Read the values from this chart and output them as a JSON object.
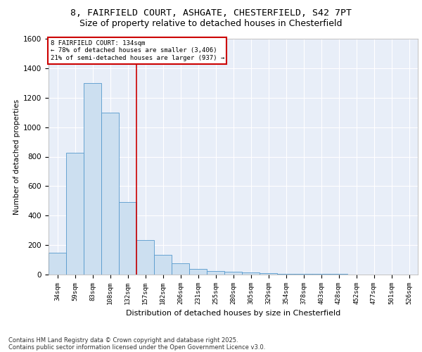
{
  "title1": "8, FAIRFIELD COURT, ASHGATE, CHESTERFIELD, S42 7PT",
  "title2": "Size of property relative to detached houses in Chesterfield",
  "xlabel": "Distribution of detached houses by size in Chesterfield",
  "ylabel": "Number of detached properties",
  "categories": [
    "34sqm",
    "59sqm",
    "83sqm",
    "108sqm",
    "132sqm",
    "157sqm",
    "182sqm",
    "206sqm",
    "231sqm",
    "255sqm",
    "280sqm",
    "305sqm",
    "329sqm",
    "354sqm",
    "378sqm",
    "403sqm",
    "428sqm",
    "452sqm",
    "477sqm",
    "501sqm",
    "526sqm"
  ],
  "values": [
    150,
    825,
    1300,
    1100,
    490,
    235,
    135,
    75,
    40,
    25,
    20,
    15,
    10,
    5,
    5,
    5,
    5,
    2,
    2,
    2,
    2
  ],
  "bar_color": "#ccdff0",
  "bar_edge_color": "#5599cc",
  "vline_color": "#cc0000",
  "vline_position": 4,
  "annotation_title": "8 FAIRFIELD COURT: 134sqm",
  "annotation_line1": "← 78% of detached houses are smaller (3,406)",
  "annotation_line2": "21% of semi-detached houses are larger (937) →",
  "annotation_box_color": "#cc0000",
  "ylim": [
    0,
    1600
  ],
  "yticks": [
    0,
    200,
    400,
    600,
    800,
    1000,
    1200,
    1400,
    1600
  ],
  "footer1": "Contains HM Land Registry data © Crown copyright and database right 2025.",
  "footer2": "Contains public sector information licensed under the Open Government Licence v3.0.",
  "bg_color": "#e8eef8",
  "fig_bg_color": "#ffffff",
  "title_fontsize": 9.5,
  "subtitle_fontsize": 9
}
